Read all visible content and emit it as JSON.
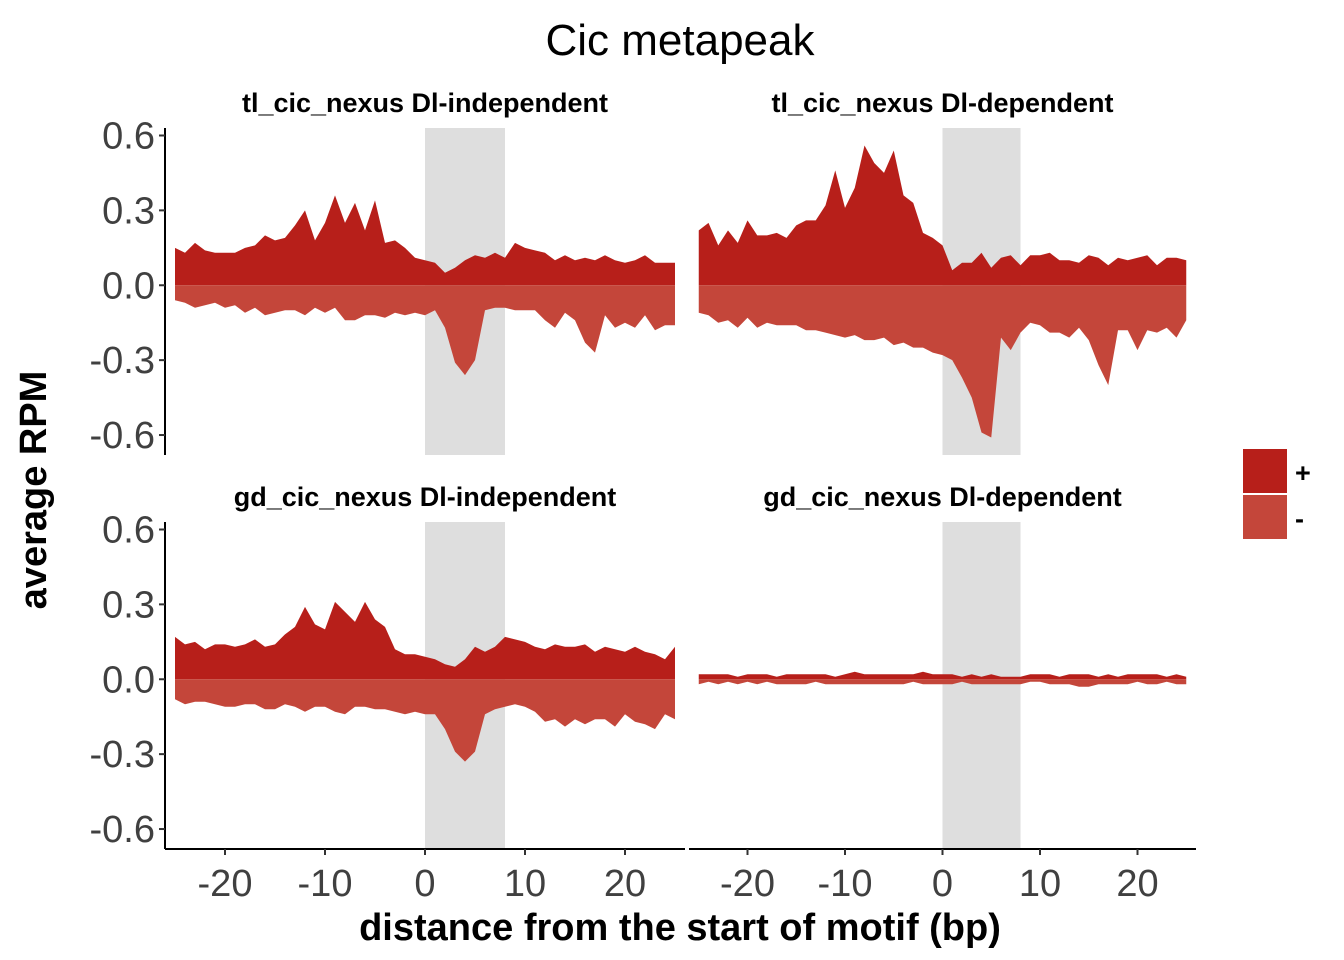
{
  "chart_data": {
    "type": "area",
    "title": "Cic metapeak",
    "xlabel": "distance from the start of motif (bp)",
    "ylabel": "average RPM",
    "xlim": [
      -26,
      26
    ],
    "ylim": [
      -0.68,
      0.63
    ],
    "x_ticks": [
      -20,
      -10,
      0,
      10,
      20
    ],
    "x_tick_labels": [
      "-20",
      "-10",
      "0",
      "10",
      "20"
    ],
    "y_ticks": [
      0.6,
      0.3,
      0.0,
      -0.3,
      -0.6
    ],
    "y_tick_labels": [
      "0.6",
      "0.3",
      "0.0",
      "-0.3",
      "-0.6"
    ],
    "highlight_region": [
      0,
      8
    ],
    "highlight_color": "#dedede",
    "grid": false,
    "legend": {
      "position": "right",
      "entries": [
        {
          "label": "+",
          "color": "#b71f1a"
        },
        {
          "label": "-",
          "color": "#c4463a"
        }
      ]
    },
    "x": [
      -25,
      -24,
      -23,
      -22,
      -21,
      -20,
      -19,
      -18,
      -17,
      -16,
      -15,
      -14,
      -13,
      -12,
      -11,
      -10,
      -9,
      -8,
      -7,
      -6,
      -5,
      -4,
      -3,
      -2,
      -1,
      0,
      1,
      2,
      3,
      4,
      5,
      6,
      7,
      8,
      9,
      10,
      11,
      12,
      13,
      14,
      15,
      16,
      17,
      18,
      19,
      20,
      21,
      22,
      23,
      24,
      25
    ],
    "panels": [
      {
        "title": "tl_cic_nexus Dl-independent",
        "plus": [
          0.15,
          0.13,
          0.17,
          0.14,
          0.13,
          0.13,
          0.13,
          0.15,
          0.16,
          0.2,
          0.18,
          0.19,
          0.24,
          0.3,
          0.18,
          0.25,
          0.36,
          0.25,
          0.33,
          0.22,
          0.34,
          0.17,
          0.18,
          0.15,
          0.11,
          0.1,
          0.09,
          0.05,
          0.07,
          0.1,
          0.12,
          0.11,
          0.13,
          0.11,
          0.17,
          0.15,
          0.14,
          0.13,
          0.1,
          0.12,
          0.1,
          0.11,
          0.1,
          0.12,
          0.1,
          0.09,
          0.1,
          0.12,
          0.09,
          0.09,
          0.09
        ],
        "minus": [
          -0.06,
          -0.07,
          -0.09,
          -0.08,
          -0.07,
          -0.09,
          -0.08,
          -0.11,
          -0.09,
          -0.12,
          -0.11,
          -0.1,
          -0.1,
          -0.12,
          -0.09,
          -0.11,
          -0.09,
          -0.14,
          -0.14,
          -0.12,
          -0.12,
          -0.13,
          -0.11,
          -0.12,
          -0.11,
          -0.12,
          -0.1,
          -0.17,
          -0.31,
          -0.36,
          -0.3,
          -0.1,
          -0.09,
          -0.09,
          -0.1,
          -0.1,
          -0.1,
          -0.14,
          -0.17,
          -0.11,
          -0.14,
          -0.23,
          -0.27,
          -0.12,
          -0.17,
          -0.15,
          -0.17,
          -0.12,
          -0.18,
          -0.16,
          -0.16
        ]
      },
      {
        "title": "tl_cic_nexus Dl-dependent",
        "plus": [
          0.22,
          0.25,
          0.16,
          0.22,
          0.17,
          0.26,
          0.2,
          0.2,
          0.21,
          0.19,
          0.24,
          0.26,
          0.26,
          0.32,
          0.46,
          0.31,
          0.39,
          0.56,
          0.49,
          0.45,
          0.54,
          0.36,
          0.33,
          0.21,
          0.19,
          0.16,
          0.06,
          0.09,
          0.09,
          0.13,
          0.07,
          0.11,
          0.12,
          0.08,
          0.12,
          0.12,
          0.13,
          0.1,
          0.1,
          0.09,
          0.12,
          0.11,
          0.08,
          0.11,
          0.1,
          0.11,
          0.12,
          0.08,
          0.11,
          0.11,
          0.1
        ],
        "minus": [
          -0.11,
          -0.12,
          -0.15,
          -0.14,
          -0.17,
          -0.13,
          -0.17,
          -0.15,
          -0.16,
          -0.16,
          -0.16,
          -0.18,
          -0.18,
          -0.19,
          -0.2,
          -0.21,
          -0.2,
          -0.22,
          -0.22,
          -0.21,
          -0.24,
          -0.23,
          -0.25,
          -0.25,
          -0.27,
          -0.28,
          -0.3,
          -0.37,
          -0.45,
          -0.59,
          -0.61,
          -0.21,
          -0.26,
          -0.19,
          -0.15,
          -0.16,
          -0.19,
          -0.19,
          -0.21,
          -0.17,
          -0.22,
          -0.32,
          -0.4,
          -0.18,
          -0.18,
          -0.26,
          -0.18,
          -0.19,
          -0.17,
          -0.21,
          -0.14
        ]
      },
      {
        "title": "gd_cic_nexus Dl-independent",
        "plus": [
          0.17,
          0.14,
          0.15,
          0.12,
          0.14,
          0.14,
          0.13,
          0.14,
          0.16,
          0.13,
          0.14,
          0.18,
          0.21,
          0.29,
          0.22,
          0.2,
          0.31,
          0.27,
          0.23,
          0.31,
          0.24,
          0.21,
          0.12,
          0.1,
          0.1,
          0.09,
          0.08,
          0.06,
          0.05,
          0.08,
          0.13,
          0.11,
          0.13,
          0.17,
          0.16,
          0.15,
          0.13,
          0.12,
          0.14,
          0.13,
          0.13,
          0.14,
          0.11,
          0.13,
          0.12,
          0.11,
          0.13,
          0.11,
          0.1,
          0.08,
          0.13
        ],
        "minus": [
          -0.08,
          -0.1,
          -0.09,
          -0.09,
          -0.1,
          -0.11,
          -0.11,
          -0.1,
          -0.1,
          -0.12,
          -0.12,
          -0.1,
          -0.11,
          -0.13,
          -0.11,
          -0.11,
          -0.13,
          -0.14,
          -0.11,
          -0.11,
          -0.12,
          -0.12,
          -0.13,
          -0.14,
          -0.13,
          -0.14,
          -0.14,
          -0.2,
          -0.29,
          -0.33,
          -0.29,
          -0.14,
          -0.12,
          -0.11,
          -0.1,
          -0.11,
          -0.13,
          -0.17,
          -0.16,
          -0.19,
          -0.16,
          -0.18,
          -0.16,
          -0.16,
          -0.19,
          -0.14,
          -0.17,
          -0.18,
          -0.2,
          -0.14,
          -0.16
        ]
      },
      {
        "title": "gd_cic_nexus Dl-dependent",
        "plus": [
          0.02,
          0.02,
          0.02,
          0.02,
          0.01,
          0.02,
          0.02,
          0.02,
          0.01,
          0.02,
          0.02,
          0.02,
          0.02,
          0.02,
          0.01,
          0.02,
          0.03,
          0.02,
          0.02,
          0.02,
          0.02,
          0.02,
          0.02,
          0.03,
          0.02,
          0.02,
          0.02,
          0.01,
          0.02,
          0.01,
          0.02,
          0.01,
          0.01,
          0.01,
          0.02,
          0.02,
          0.02,
          0.01,
          0.02,
          0.02,
          0.02,
          0.01,
          0.02,
          0.01,
          0.02,
          0.02,
          0.02,
          0.02,
          0.01,
          0.02,
          0.01
        ],
        "minus": [
          -0.02,
          -0.01,
          -0.02,
          -0.01,
          -0.02,
          -0.01,
          -0.02,
          -0.01,
          -0.02,
          -0.02,
          -0.02,
          -0.02,
          -0.01,
          -0.02,
          -0.02,
          -0.02,
          -0.02,
          -0.02,
          -0.02,
          -0.02,
          -0.02,
          -0.02,
          -0.01,
          -0.02,
          -0.02,
          -0.02,
          -0.02,
          -0.01,
          -0.02,
          -0.02,
          -0.02,
          -0.02,
          -0.02,
          -0.02,
          -0.01,
          -0.01,
          -0.02,
          -0.02,
          -0.02,
          -0.03,
          -0.03,
          -0.02,
          -0.02,
          -0.02,
          -0.02,
          -0.01,
          -0.02,
          -0.02,
          -0.01,
          -0.02,
          -0.02
        ]
      }
    ]
  }
}
